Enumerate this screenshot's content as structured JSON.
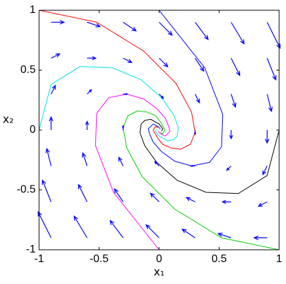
{
  "chart_data": {
    "type": "quiver",
    "xlabel": "x₁",
    "ylabel": "x₂",
    "xlim": [
      -1,
      1
    ],
    "ylim": [
      -1,
      1
    ],
    "xticks": [
      -1,
      -0.5,
      0,
      0.5,
      1
    ],
    "yticks": [
      -1,
      -0.5,
      0,
      0.5,
      1
    ],
    "arrow_color": "#0000ff",
    "arrows": {
      "x": [
        -0.9,
        -0.6,
        -0.3,
        0,
        0.3,
        0.6,
        0.9,
        -0.9,
        -0.6,
        -0.3,
        0,
        0.3,
        0.6,
        0.9,
        -0.9,
        -0.6,
        -0.3,
        0,
        0.3,
        0.6,
        0.9,
        -0.9,
        -0.6,
        -0.3,
        0,
        0.3,
        0.6,
        0.9,
        -0.9,
        -0.6,
        -0.3,
        0,
        0.3,
        0.6,
        0.9,
        -0.9,
        -0.6,
        -0.3,
        0,
        0.3,
        0.6,
        0.9,
        -0.9,
        -0.6,
        -0.3,
        0,
        0.3,
        0.6,
        0.9
      ],
      "y": [
        0.9,
        0.9,
        0.9,
        0.9,
        0.9,
        0.9,
        0.9,
        0.6,
        0.6,
        0.6,
        0.6,
        0.6,
        0.6,
        0.6,
        0.3,
        0.3,
        0.3,
        0.3,
        0.3,
        0.3,
        0.3,
        0,
        0,
        0,
        0,
        0,
        0,
        0,
        -0.3,
        -0.3,
        -0.3,
        -0.3,
        -0.3,
        -0.3,
        -0.3,
        -0.6,
        -0.6,
        -0.6,
        -0.6,
        -0.6,
        -0.6,
        -0.6,
        -0.9,
        -0.9,
        -0.9,
        -0.9,
        -0.9,
        -0.9,
        -0.9
      ],
      "u": [
        0.9,
        0.9,
        0.9,
        0.9,
        0.9,
        0.9,
        0.9,
        0.6,
        0.6,
        0.6,
        0.6,
        0.6,
        0.6,
        0.6,
        0.3,
        0.3,
        0.3,
        0.3,
        0.3,
        0.3,
        0.3,
        0,
        0,
        0,
        0,
        0,
        0,
        0,
        -0.3,
        -0.3,
        -0.3,
        -0.3,
        -0.3,
        -0.3,
        -0.3,
        -0.6,
        -0.6,
        -0.6,
        -0.6,
        -0.6,
        -0.6,
        -0.6,
        -0.9,
        -0.9,
        -0.9,
        -0.9,
        -0.9,
        -0.9,
        -0.9
      ],
      "v": [
        0,
        -0.3,
        -0.6,
        -0.9,
        -1.2,
        -1.5,
        -1.8,
        0.3,
        0,
        -0.3,
        -0.6,
        -0.9,
        -1.2,
        -1.5,
        0.6,
        0.3,
        0,
        -0.3,
        -0.6,
        -0.9,
        -1.2,
        0.9,
        0.6,
        0.3,
        0,
        -0.3,
        -0.6,
        -0.9,
        1.2,
        0.9,
        0.6,
        0.3,
        0,
        -0.3,
        -0.6,
        1.5,
        1.2,
        0.9,
        0.6,
        0.3,
        0,
        -0.3,
        1.8,
        1.5,
        1.2,
        0.9,
        0.6,
        0.3,
        0
      ]
    },
    "trajectories": [
      {
        "color": "#ff0000",
        "x": [
          -1,
          -0.52,
          -0.13,
          0.14,
          0.27,
          0.3,
          0.26,
          0.18,
          0.1,
          0.03,
          -0.01,
          -0.05,
          -0.03,
          -0.01
        ],
        "y": [
          1,
          0.9,
          0.66,
          0.39,
          0.15,
          -0.02,
          -0.12,
          -0.16,
          -0.15,
          -0.12,
          -0.07,
          0,
          0.03,
          0.02
        ]
      },
      {
        "color": "#00cc00",
        "x": [
          1,
          0.52,
          0.13,
          -0.14,
          -0.27,
          -0.3,
          -0.26,
          -0.18,
          -0.1,
          -0.03,
          0.01,
          0.05,
          0.03,
          0.01
        ],
        "y": [
          -1,
          -0.9,
          -0.66,
          -0.39,
          -0.15,
          0.02,
          0.12,
          0.16,
          0.15,
          0.12,
          0.07,
          0,
          -0.03,
          -0.02
        ]
      },
      {
        "color": "#0000ff",
        "x": [
          0,
          0.38,
          0.53,
          0.52,
          0.42,
          0.27,
          0.13,
          0.02,
          -0.05,
          -0.08,
          -0.09,
          -0.05,
          -0.01,
          0.01
        ],
        "y": [
          1,
          0.52,
          0.13,
          -0.14,
          -0.27,
          -0.3,
          -0.26,
          -0.18,
          -0.1,
          -0.03,
          0.01,
          0.05,
          0.03,
          0.01
        ]
      },
      {
        "color": "#ff00ff",
        "x": [
          0,
          -0.38,
          -0.53,
          -0.52,
          -0.42,
          -0.27,
          -0.13,
          -0.02,
          0.05,
          0.08,
          0.09,
          0.05,
          0.01,
          -0.01
        ],
        "y": [
          -1,
          -0.52,
          -0.13,
          0.14,
          0.27,
          0.3,
          0.26,
          0.18,
          0.1,
          0.03,
          -0.01,
          -0.05,
          -0.03,
          -0.01
        ]
      },
      {
        "color": "#00e0e0",
        "x": [
          -1,
          -0.9,
          -0.66,
          -0.39,
          -0.15,
          0.02,
          0.12,
          0.16,
          0.15,
          0.12,
          0.07,
          0,
          -0.03,
          -0.02
        ],
        "y": [
          0,
          0.38,
          0.53,
          0.52,
          0.42,
          0.27,
          0.13,
          0.02,
          -0.05,
          -0.08,
          -0.09,
          -0.05,
          -0.01,
          0.01
        ]
      },
      {
        "color": "#000000",
        "x": [
          1,
          0.9,
          0.66,
          0.39,
          0.15,
          -0.02,
          -0.12,
          -0.16,
          -0.15,
          -0.12,
          -0.07,
          0,
          0.03,
          0.02
        ],
        "y": [
          0,
          -0.38,
          -0.53,
          -0.52,
          -0.42,
          -0.27,
          -0.13,
          -0.02,
          0.05,
          0.08,
          0.09,
          0.05,
          0.01,
          -0.01
        ]
      }
    ]
  }
}
